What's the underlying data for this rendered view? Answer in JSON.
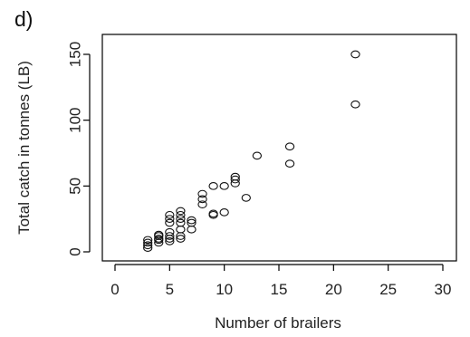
{
  "panel_label": "d)",
  "chart_data": {
    "type": "scatter",
    "title": "",
    "xlabel": "Number of brailers",
    "ylabel": "Total catch in tonnes (LB)",
    "xlim": [
      0,
      30
    ],
    "ylim": [
      0,
      150
    ],
    "xticks": [
      0,
      5,
      10,
      15,
      20,
      25,
      30
    ],
    "yticks": [
      0,
      50,
      100,
      150
    ],
    "grid": false,
    "marker": "open-circle",
    "points": [
      {
        "x": 3,
        "y": 3
      },
      {
        "x": 3,
        "y": 5
      },
      {
        "x": 3,
        "y": 7
      },
      {
        "x": 3,
        "y": 9
      },
      {
        "x": 4,
        "y": 7
      },
      {
        "x": 4,
        "y": 9
      },
      {
        "x": 4,
        "y": 10
      },
      {
        "x": 4,
        "y": 12
      },
      {
        "x": 4,
        "y": 13
      },
      {
        "x": 5,
        "y": 8
      },
      {
        "x": 5,
        "y": 10
      },
      {
        "x": 5,
        "y": 12
      },
      {
        "x": 5,
        "y": 15
      },
      {
        "x": 5,
        "y": 22
      },
      {
        "x": 5,
        "y": 25
      },
      {
        "x": 5,
        "y": 28
      },
      {
        "x": 6,
        "y": 10
      },
      {
        "x": 6,
        "y": 12
      },
      {
        "x": 6,
        "y": 17
      },
      {
        "x": 6,
        "y": 22
      },
      {
        "x": 6,
        "y": 25
      },
      {
        "x": 6,
        "y": 28
      },
      {
        "x": 6,
        "y": 31
      },
      {
        "x": 7,
        "y": 17
      },
      {
        "x": 7,
        "y": 22
      },
      {
        "x": 7,
        "y": 24
      },
      {
        "x": 8,
        "y": 36
      },
      {
        "x": 8,
        "y": 40
      },
      {
        "x": 8,
        "y": 44
      },
      {
        "x": 9,
        "y": 28
      },
      {
        "x": 9,
        "y": 29
      },
      {
        "x": 9,
        "y": 50
      },
      {
        "x": 10,
        "y": 30
      },
      {
        "x": 10,
        "y": 50
      },
      {
        "x": 11,
        "y": 52
      },
      {
        "x": 11,
        "y": 55
      },
      {
        "x": 11,
        "y": 57
      },
      {
        "x": 12,
        "y": 41
      },
      {
        "x": 13,
        "y": 73
      },
      {
        "x": 16,
        "y": 67
      },
      {
        "x": 16,
        "y": 80
      },
      {
        "x": 22,
        "y": 112
      },
      {
        "x": 22,
        "y": 150
      }
    ]
  }
}
